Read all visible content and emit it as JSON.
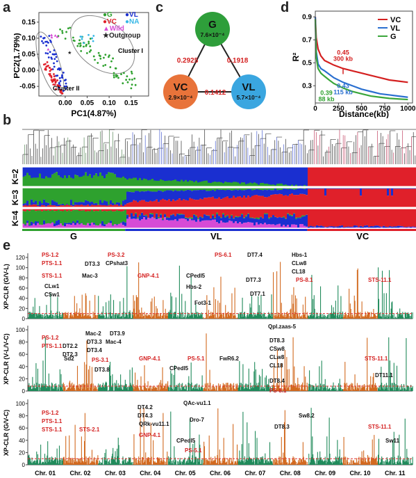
{
  "panel_labels": {
    "a": "a",
    "b": "b",
    "c": "c",
    "d": "d",
    "e": "e"
  },
  "colors": {
    "G": "#2ea12e",
    "VC": "#e0202a",
    "VL": "#1a2fd0",
    "NA": "#36b7e6",
    "Wild": "#d64bd6",
    "Outgroup": "#222222",
    "chr_green": "#1f8a5a",
    "chr_orange": "#d2691e",
    "red_label": "#d42020",
    "threshold": "#e03030"
  },
  "chart_data": [
    {
      "id": "a",
      "type": "scatter",
      "xlabel": "PC1(4.87%)",
      "ylabel": "PC2(1.79%)",
      "xticks": [
        "0.00",
        "0.05",
        "0.10",
        "0.15"
      ],
      "yticks": [
        "0.15",
        "0.10",
        "0.05",
        "0.00",
        "-0.05"
      ],
      "xlim": [
        -0.06,
        0.19
      ],
      "ylim": [
        -0.08,
        0.18
      ],
      "legend": [
        {
          "symbol": "●",
          "name": "G",
          "color": "#2ea12e"
        },
        {
          "symbol": "●",
          "name": "VL",
          "color": "#1a2fd0"
        },
        {
          "symbol": "●",
          "name": "VC",
          "color": "#e0202a"
        },
        {
          "symbol": "●",
          "name": "NA",
          "color": "#36b7e6"
        },
        {
          "symbol": "▲",
          "name": "Wild",
          "color": "#d64bd6"
        },
        {
          "symbol": "★",
          "name": "Outgroup",
          "color": "#222222"
        }
      ],
      "annotations": [
        "Cluster I",
        "Cluster II"
      ]
    },
    {
      "id": "c",
      "type": "diagram",
      "nodes": [
        {
          "name": "G",
          "value": "7.6×10⁻⁴",
          "color": "#2e9e3a"
        },
        {
          "name": "VC",
          "value": "2.9×10⁻⁴",
          "color": "#e8733a"
        },
        {
          "name": "VL",
          "value": "5.7×10⁻⁴",
          "color": "#3aa6e0"
        }
      ],
      "edges": [
        {
          "from": "G",
          "to": "VC",
          "value": "0.2925"
        },
        {
          "from": "G",
          "to": "VL",
          "value": "0.1918"
        },
        {
          "from": "VC",
          "to": "VL",
          "value": "0.1412"
        }
      ]
    },
    {
      "id": "d",
      "type": "line",
      "xlabel": "Distance(kb)",
      "ylabel": "R²",
      "xticks": [
        "0",
        "250",
        "500",
        "750",
        "1000"
      ],
      "yticks": [
        "0.9",
        "0.7",
        "0.5",
        "0.3"
      ],
      "xlim": [
        0,
        1050
      ],
      "ylim": [
        0.15,
        0.95
      ],
      "series": [
        {
          "name": "VC",
          "color": "#d42020",
          "x": [
            0,
            10,
            30,
            60,
            100,
            150,
            200,
            300,
            400,
            500,
            600,
            700,
            800,
            900,
            1000
          ],
          "y": [
            0.9,
            0.72,
            0.62,
            0.56,
            0.52,
            0.5,
            0.48,
            0.45,
            0.43,
            0.41,
            0.39,
            0.37,
            0.35,
            0.34,
            0.33
          ]
        },
        {
          "name": "VL",
          "color": "#2a6fd0",
          "x": [
            0,
            10,
            30,
            60,
            100,
            150,
            200,
            300,
            400,
            500,
            600,
            700,
            800,
            900,
            1000
          ],
          "y": [
            0.9,
            0.6,
            0.49,
            0.45,
            0.43,
            0.4,
            0.37,
            0.33,
            0.3,
            0.27,
            0.25,
            0.23,
            0.22,
            0.21,
            0.2
          ]
        },
        {
          "name": "G",
          "color": "#3aa63a",
          "x": [
            0,
            10,
            30,
            60,
            88,
            150,
            200,
            300,
            400,
            500,
            600,
            700,
            800,
            900,
            1000
          ],
          "y": [
            0.88,
            0.55,
            0.45,
            0.41,
            0.39,
            0.35,
            0.32,
            0.28,
            0.25,
            0.23,
            0.21,
            0.2,
            0.19,
            0.185,
            0.18
          ]
        }
      ],
      "annotations": [
        {
          "text": "0.45",
          "sub": "300 kb",
          "color": "#d42020"
        },
        {
          "text": "0.43",
          "sub": "115 kb",
          "color": "#2a6fd0"
        },
        {
          "text": "0.39",
          "sub": "88 kb",
          "color": "#2ea12e"
        }
      ]
    },
    {
      "id": "b",
      "type": "bar",
      "row_labels": [
        "K=2",
        "K=3",
        "K=4"
      ],
      "group_labels": [
        "G",
        "VL",
        "VC"
      ]
    },
    {
      "id": "e",
      "type": "scatter",
      "chromosomes": [
        "Chr. 01",
        "Chr. 02",
        "Chr. 03",
        "Chr. 04",
        "Chr. 05",
        "Chr. 06",
        "Chr. 07",
        "Chr. 08",
        "Chr. 09",
        "Chr. 10",
        "Chr. 11"
      ],
      "yticks": [
        "0",
        "20",
        "40",
        "60",
        "80",
        "100",
        "120"
      ],
      "tracks": [
        {
          "ylabel": "XP-CLR (G/V-L)",
          "ymax": 120,
          "threshold": 10,
          "labels": [
            {
              "text": "PS-1.2",
              "red": true
            },
            {
              "text": "PTS-1.1",
              "red": true
            },
            {
              "text": "STS-1.1",
              "red": true
            },
            {
              "text": "CLw1",
              "red": false
            },
            {
              "text": "CSw1",
              "red": false
            },
            {
              "text": "DT3.3",
              "red": false
            },
            {
              "text": "Mac-3",
              "red": false
            },
            {
              "text": "PS-3.2",
              "red": true
            },
            {
              "text": "CPshat3",
              "red": false
            },
            {
              "text": "GNP-4.1",
              "red": true
            },
            {
              "text": "CPedl5",
              "red": false
            },
            {
              "text": "Hbs-2",
              "red": false
            },
            {
              "text": "Fot3-1",
              "red": false
            },
            {
              "text": "PS-6.1",
              "red": true
            },
            {
              "text": "DT7.4",
              "red": false
            },
            {
              "text": "DT7.3",
              "red": false
            },
            {
              "text": "DT7.1",
              "red": false
            },
            {
              "text": "Hbs-1",
              "red": false
            },
            {
              "text": "CLw8",
              "red": false
            },
            {
              "text": "CL18",
              "red": false
            },
            {
              "text": "PS-8.1",
              "red": true
            },
            {
              "text": "STS-11.1",
              "red": true
            }
          ]
        },
        {
          "ylabel": "XP-CLR (V-L/V-C)",
          "ymax": 100,
          "threshold": 8,
          "labels": [
            {
              "text": "PS-1.2",
              "red": true
            },
            {
              "text": "PTS-1.1",
              "red": true
            },
            {
              "text": "Sd2",
              "red": false
            },
            {
              "text": "DT2.2",
              "red": false
            },
            {
              "text": "DT2.3",
              "red": false
            },
            {
              "text": "Mac-2",
              "red": false
            },
            {
              "text": "DT3.3",
              "red": false
            },
            {
              "text": "DT3.4",
              "red": false
            },
            {
              "text": "PS-3.1",
              "red": true
            },
            {
              "text": "DT3.8",
              "red": false
            },
            {
              "text": "DT3.9",
              "red": false
            },
            {
              "text": "Mac-4",
              "red": false
            },
            {
              "text": "GNP-4.1",
              "red": true
            },
            {
              "text": "CPedl5",
              "red": false
            },
            {
              "text": "PS-5.1",
              "red": true
            },
            {
              "text": "FwR6.2",
              "red": false
            },
            {
              "text": "Qpl.zaas-5",
              "red": false
            },
            {
              "text": "DT8.3",
              "red": false
            },
            {
              "text": "CSw8",
              "red": false
            },
            {
              "text": "CLw8",
              "red": false
            },
            {
              "text": "CL18",
              "red": false
            },
            {
              "text": "DT8.4",
              "red": false
            },
            {
              "text": "PS-8.1",
              "red": true
            },
            {
              "text": "STS-11.1",
              "red": true
            },
            {
              "text": "DT11.1",
              "red": false
            }
          ]
        },
        {
          "ylabel": "XP-CLR (G/V-C)",
          "ymax": 100,
          "threshold": 10,
          "labels": [
            {
              "text": "PS-1.2",
              "red": true
            },
            {
              "text": "PTS-1.1",
              "red": true
            },
            {
              "text": "STS-1.1",
              "red": true
            },
            {
              "text": "STS-2.1",
              "red": true
            },
            {
              "text": "DT4.2",
              "red": false
            },
            {
              "text": "DT4.3",
              "red": false
            },
            {
              "text": "QRk-vu11.1",
              "red": false
            },
            {
              "text": "GNP-4.1",
              "red": true
            },
            {
              "text": "QAc-vu1.1",
              "red": false
            },
            {
              "text": "Dro-7",
              "red": false
            },
            {
              "text": "CPedl5",
              "red": false
            },
            {
              "text": "PS-5.1",
              "red": true
            },
            {
              "text": "DT8.3",
              "red": false
            },
            {
              "text": "Sw8.2",
              "red": false
            },
            {
              "text": "STS-11.1",
              "red": true
            },
            {
              "text": "Sw11",
              "red": false
            }
          ]
        }
      ]
    }
  ]
}
